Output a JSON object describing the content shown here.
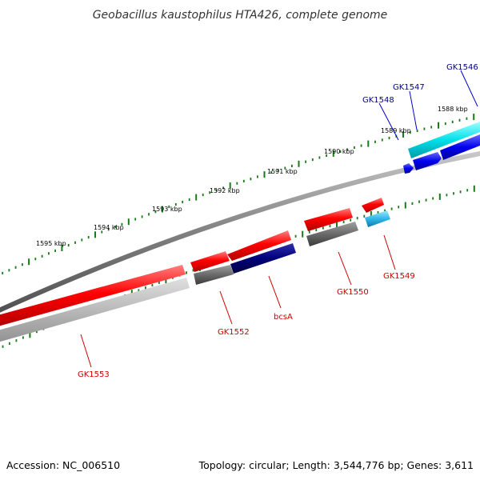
{
  "title": "Geobacillus kaustophilus HTA426, complete genome",
  "footer": {
    "accession": "Accession: NC_006510",
    "summary": "Topology: circular; Length: 3,544,776 bp; Genes: 3,611"
  },
  "ticks": [
    {
      "label": "1588 kbp"
    },
    {
      "label": "1589 kbp"
    },
    {
      "label": "1590 kbp"
    },
    {
      "label": "1591 kbp"
    },
    {
      "label": "1592 kbp"
    },
    {
      "label": "1593 kbp"
    },
    {
      "label": "1594 kbp"
    },
    {
      "label": "1595 kbp"
    }
  ],
  "genes": [
    {
      "name": "GK1546",
      "strand": "forward",
      "color": "#00008b"
    },
    {
      "name": "GK1547",
      "strand": "forward",
      "color": "#00008b"
    },
    {
      "name": "GK1548",
      "strand": "forward",
      "color": "#00008b"
    },
    {
      "name": "GK1549",
      "strand": "reverse",
      "color": "#cc0000"
    },
    {
      "name": "GK1550",
      "strand": "reverse",
      "color": "#cc0000"
    },
    {
      "name": "bcsA",
      "strand": "reverse",
      "color": "#cc0000"
    },
    {
      "name": "GK1552",
      "strand": "reverse",
      "color": "#cc0000"
    },
    {
      "name": "GK1553",
      "strand": "reverse",
      "color": "#cc0000"
    }
  ],
  "colors": {
    "backbone": "#808080",
    "tick": "#1a7a1a",
    "reverse_gene": "#ff0000",
    "forward_gene": "#0000ee",
    "cyan_gene": "#00d8e0",
    "navy_gene": "#00007a",
    "gray_gene": "#707070"
  }
}
